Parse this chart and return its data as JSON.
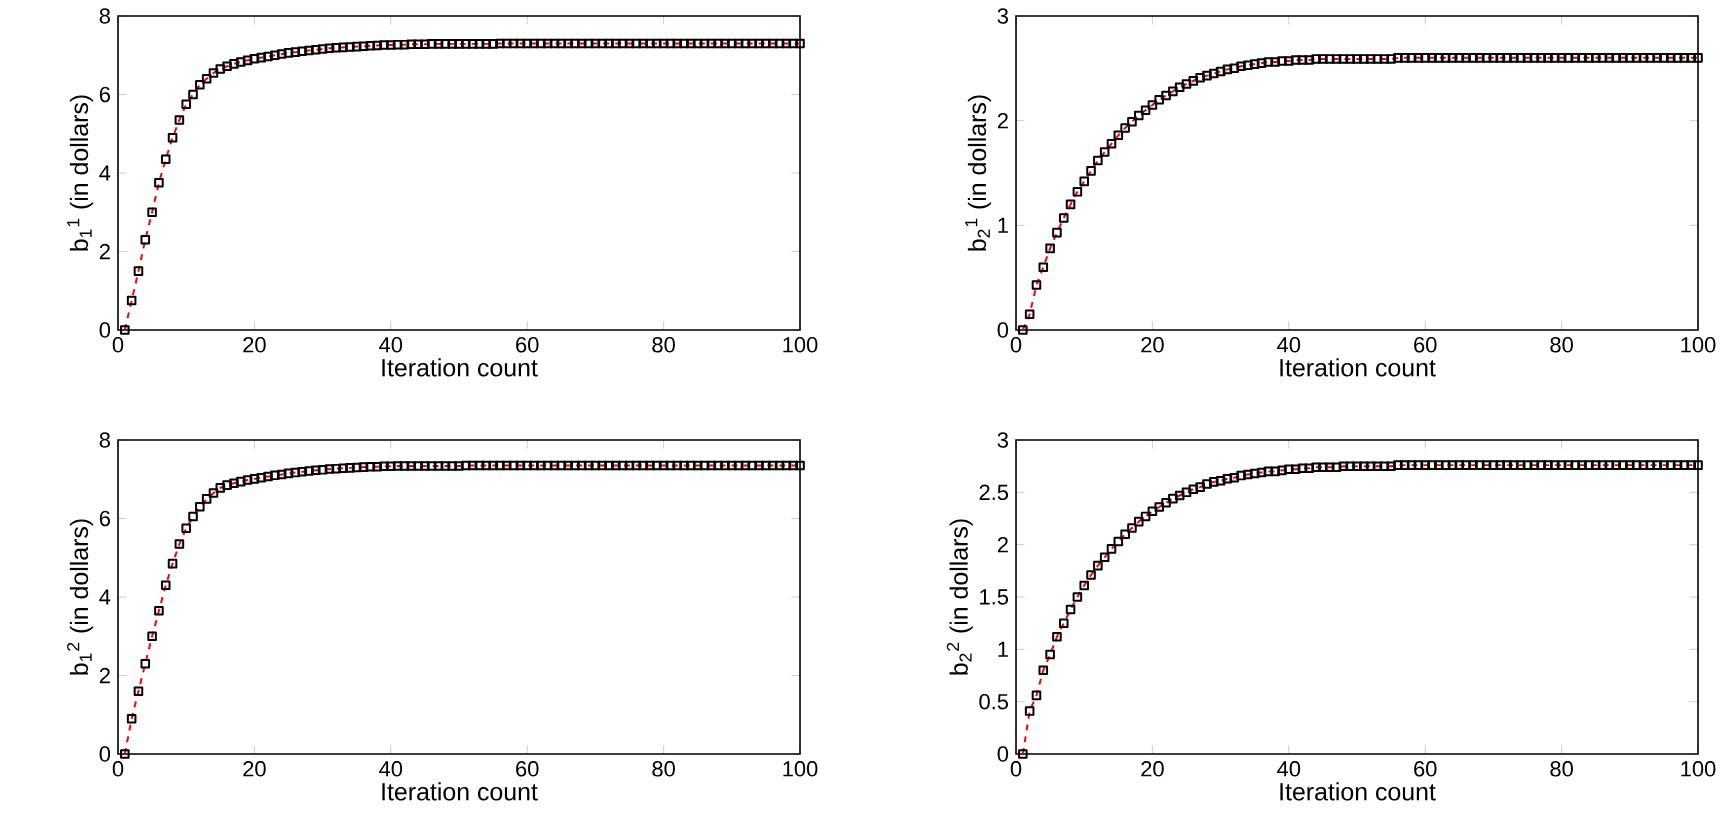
{
  "chart_data": [
    {
      "type": "line",
      "xlabel": "Iteration count",
      "ylabel": "b$_{1}$$^{1}$ (in dollars)",
      "xlim": [
        0,
        100
      ],
      "ylim": [
        0,
        8
      ],
      "xticks": [
        0,
        20,
        40,
        60,
        80,
        100
      ],
      "yticks": [
        0,
        2,
        4,
        6,
        8
      ],
      "marker": "square",
      "line_style": "dashed",
      "color": "#ff0000",
      "x": [
        1,
        2,
        3,
        4,
        5,
        6,
        7,
        8,
        9,
        10,
        11,
        12,
        13,
        14,
        15,
        16,
        17,
        18,
        19,
        20,
        21,
        22,
        23,
        24,
        25,
        26,
        27,
        28,
        29,
        30,
        31,
        32,
        33,
        34,
        35,
        36,
        37,
        38,
        39,
        40,
        41,
        42,
        43,
        44,
        45,
        46,
        47,
        48,
        49,
        50,
        51,
        52,
        53,
        54,
        55,
        56,
        57,
        58,
        59,
        60,
        61,
        62,
        63,
        64,
        65,
        66,
        67,
        68,
        69,
        70,
        71,
        72,
        73,
        74,
        75,
        76,
        77,
        78,
        79,
        80,
        81,
        82,
        83,
        84,
        85,
        86,
        87,
        88,
        89,
        90,
        91,
        92,
        93,
        94,
        95,
        96,
        97,
        98,
        99,
        100
      ],
      "values": [
        0,
        0.75,
        1.5,
        2.3,
        3.0,
        3.75,
        4.35,
        4.9,
        5.35,
        5.75,
        6.0,
        6.25,
        6.4,
        6.55,
        6.65,
        6.72,
        6.78,
        6.83,
        6.87,
        6.91,
        6.94,
        6.97,
        7.0,
        7.03,
        7.06,
        7.08,
        7.1,
        7.12,
        7.14,
        7.16,
        7.18,
        7.19,
        7.2,
        7.21,
        7.22,
        7.23,
        7.24,
        7.25,
        7.26,
        7.26,
        7.27,
        7.27,
        7.28,
        7.28,
        7.28,
        7.29,
        7.29,
        7.29,
        7.29,
        7.29,
        7.29,
        7.29,
        7.29,
        7.29,
        7.29,
        7.3,
        7.3,
        7.3,
        7.3,
        7.3,
        7.3,
        7.3,
        7.3,
        7.3,
        7.3,
        7.3,
        7.3,
        7.3,
        7.3,
        7.3,
        7.3,
        7.3,
        7.3,
        7.3,
        7.3,
        7.3,
        7.3,
        7.3,
        7.3,
        7.3,
        7.3,
        7.3,
        7.3,
        7.3,
        7.3,
        7.3,
        7.3,
        7.3,
        7.3,
        7.3,
        7.3,
        7.3,
        7.3,
        7.3,
        7.3,
        7.3,
        7.3,
        7.3,
        7.3,
        7.3
      ]
    },
    {
      "type": "line",
      "xlabel": "Iteration count",
      "ylabel": "b$_{2}$$^{1}$ (in dollars)",
      "xlim": [
        0,
        100
      ],
      "ylim": [
        0,
        3
      ],
      "xticks": [
        0,
        20,
        40,
        60,
        80,
        100
      ],
      "yticks": [
        0,
        1,
        2,
        3
      ],
      "marker": "square",
      "line_style": "dashed",
      "color": "#ff0000",
      "x": [
        1,
        2,
        3,
        4,
        5,
        6,
        7,
        8,
        9,
        10,
        11,
        12,
        13,
        14,
        15,
        16,
        17,
        18,
        19,
        20,
        21,
        22,
        23,
        24,
        25,
        26,
        27,
        28,
        29,
        30,
        31,
        32,
        33,
        34,
        35,
        36,
        37,
        38,
        39,
        40,
        41,
        42,
        43,
        44,
        45,
        46,
        47,
        48,
        49,
        50,
        51,
        52,
        53,
        54,
        55,
        56,
        57,
        58,
        59,
        60,
        61,
        62,
        63,
        64,
        65,
        66,
        67,
        68,
        69,
        70,
        71,
        72,
        73,
        74,
        75,
        76,
        77,
        78,
        79,
        80,
        81,
        82,
        83,
        84,
        85,
        86,
        87,
        88,
        89,
        90,
        91,
        92,
        93,
        94,
        95,
        96,
        97,
        98,
        99,
        100
      ],
      "values": [
        0,
        0.15,
        0.43,
        0.6,
        0.78,
        0.93,
        1.07,
        1.2,
        1.32,
        1.42,
        1.52,
        1.62,
        1.7,
        1.78,
        1.86,
        1.93,
        1.99,
        2.05,
        2.1,
        2.15,
        2.2,
        2.24,
        2.28,
        2.32,
        2.35,
        2.38,
        2.41,
        2.43,
        2.45,
        2.47,
        2.49,
        2.5,
        2.52,
        2.53,
        2.54,
        2.55,
        2.56,
        2.56,
        2.57,
        2.57,
        2.58,
        2.58,
        2.58,
        2.59,
        2.59,
        2.59,
        2.59,
        2.59,
        2.59,
        2.59,
        2.59,
        2.59,
        2.59,
        2.59,
        2.59,
        2.6,
        2.6,
        2.6,
        2.6,
        2.6,
        2.6,
        2.6,
        2.6,
        2.6,
        2.6,
        2.6,
        2.6,
        2.6,
        2.6,
        2.6,
        2.6,
        2.6,
        2.6,
        2.6,
        2.6,
        2.6,
        2.6,
        2.6,
        2.6,
        2.6,
        2.6,
        2.6,
        2.6,
        2.6,
        2.6,
        2.6,
        2.6,
        2.6,
        2.6,
        2.6,
        2.6,
        2.6,
        2.6,
        2.6,
        2.6,
        2.6,
        2.6,
        2.6,
        2.6,
        2.6
      ]
    },
    {
      "type": "line",
      "xlabel": "Iteration count",
      "ylabel": "b$_{1}$$^{2}$ (in dollars)",
      "xlim": [
        0,
        100
      ],
      "ylim": [
        0,
        8
      ],
      "xticks": [
        0,
        20,
        40,
        60,
        80,
        100
      ],
      "yticks": [
        0,
        2,
        4,
        6,
        8
      ],
      "marker": "square",
      "line_style": "dashed",
      "color": "#ff0000",
      "x": [
        1,
        2,
        3,
        4,
        5,
        6,
        7,
        8,
        9,
        10,
        11,
        12,
        13,
        14,
        15,
        16,
        17,
        18,
        19,
        20,
        21,
        22,
        23,
        24,
        25,
        26,
        27,
        28,
        29,
        30,
        31,
        32,
        33,
        34,
        35,
        36,
        37,
        38,
        39,
        40,
        41,
        42,
        43,
        44,
        45,
        46,
        47,
        48,
        49,
        50,
        51,
        52,
        53,
        54,
        55,
        56,
        57,
        58,
        59,
        60,
        61,
        62,
        63,
        64,
        65,
        66,
        67,
        68,
        69,
        70,
        71,
        72,
        73,
        74,
        75,
        76,
        77,
        78,
        79,
        80,
        81,
        82,
        83,
        84,
        85,
        86,
        87,
        88,
        89,
        90,
        91,
        92,
        93,
        94,
        95,
        96,
        97,
        98,
        99,
        100
      ],
      "values": [
        0,
        0.9,
        1.6,
        2.3,
        3.0,
        3.65,
        4.3,
        4.85,
        5.35,
        5.75,
        6.05,
        6.3,
        6.5,
        6.65,
        6.78,
        6.85,
        6.9,
        6.94,
        6.98,
        7.01,
        7.04,
        7.07,
        7.1,
        7.12,
        7.15,
        7.17,
        7.19,
        7.21,
        7.23,
        7.24,
        7.26,
        7.27,
        7.28,
        7.29,
        7.3,
        7.31,
        7.32,
        7.32,
        7.33,
        7.33,
        7.34,
        7.34,
        7.34,
        7.34,
        7.34,
        7.34,
        7.34,
        7.34,
        7.34,
        7.34,
        7.35,
        7.35,
        7.35,
        7.35,
        7.35,
        7.35,
        7.35,
        7.35,
        7.35,
        7.35,
        7.35,
        7.35,
        7.35,
        7.35,
        7.35,
        7.35,
        7.35,
        7.35,
        7.35,
        7.35,
        7.35,
        7.35,
        7.35,
        7.35,
        7.35,
        7.35,
        7.35,
        7.35,
        7.35,
        7.35,
        7.35,
        7.35,
        7.35,
        7.35,
        7.35,
        7.35,
        7.35,
        7.35,
        7.35,
        7.35,
        7.35,
        7.35,
        7.35,
        7.35,
        7.35,
        7.35,
        7.35,
        7.35,
        7.35,
        7.35
      ]
    },
    {
      "type": "line",
      "xlabel": "Iteration count",
      "ylabel": "b$_{2}$$^{2}$ (in dollars)",
      "xlim": [
        0,
        100
      ],
      "ylim": [
        0,
        3
      ],
      "xticks": [
        0,
        20,
        40,
        60,
        80,
        100
      ],
      "yticks": [
        0,
        0.5,
        1,
        1.5,
        2,
        2.5,
        3
      ],
      "marker": "square",
      "line_style": "dashed",
      "color": "#ff0000",
      "x": [
        1,
        2,
        3,
        4,
        5,
        6,
        7,
        8,
        9,
        10,
        11,
        12,
        13,
        14,
        15,
        16,
        17,
        18,
        19,
        20,
        21,
        22,
        23,
        24,
        25,
        26,
        27,
        28,
        29,
        30,
        31,
        32,
        33,
        34,
        35,
        36,
        37,
        38,
        39,
        40,
        41,
        42,
        43,
        44,
        45,
        46,
        47,
        48,
        49,
        50,
        51,
        52,
        53,
        54,
        55,
        56,
        57,
        58,
        59,
        60,
        61,
        62,
        63,
        64,
        65,
        66,
        67,
        68,
        69,
        70,
        71,
        72,
        73,
        74,
        75,
        76,
        77,
        78,
        79,
        80,
        81,
        82,
        83,
        84,
        85,
        86,
        87,
        88,
        89,
        90,
        91,
        92,
        93,
        94,
        95,
        96,
        97,
        98,
        99,
        100
      ],
      "values": [
        0,
        0.41,
        0.56,
        0.8,
        0.95,
        1.12,
        1.25,
        1.38,
        1.5,
        1.61,
        1.71,
        1.8,
        1.88,
        1.96,
        2.03,
        2.1,
        2.16,
        2.22,
        2.27,
        2.32,
        2.36,
        2.4,
        2.44,
        2.47,
        2.5,
        2.53,
        2.55,
        2.58,
        2.6,
        2.61,
        2.63,
        2.64,
        2.66,
        2.67,
        2.68,
        2.69,
        2.7,
        2.7,
        2.71,
        2.72,
        2.72,
        2.73,
        2.73,
        2.74,
        2.74,
        2.74,
        2.74,
        2.75,
        2.75,
        2.75,
        2.75,
        2.75,
        2.75,
        2.75,
        2.75,
        2.76,
        2.76,
        2.76,
        2.76,
        2.76,
        2.76,
        2.76,
        2.76,
        2.76,
        2.76,
        2.76,
        2.76,
        2.76,
        2.76,
        2.76,
        2.76,
        2.76,
        2.76,
        2.76,
        2.76,
        2.76,
        2.76,
        2.76,
        2.76,
        2.76,
        2.76,
        2.76,
        2.76,
        2.76,
        2.76,
        2.76,
        2.76,
        2.76,
        2.76,
        2.76,
        2.76,
        2.76,
        2.76,
        2.76,
        2.76,
        2.76,
        2.76,
        2.76,
        2.76,
        2.76
      ]
    }
  ]
}
